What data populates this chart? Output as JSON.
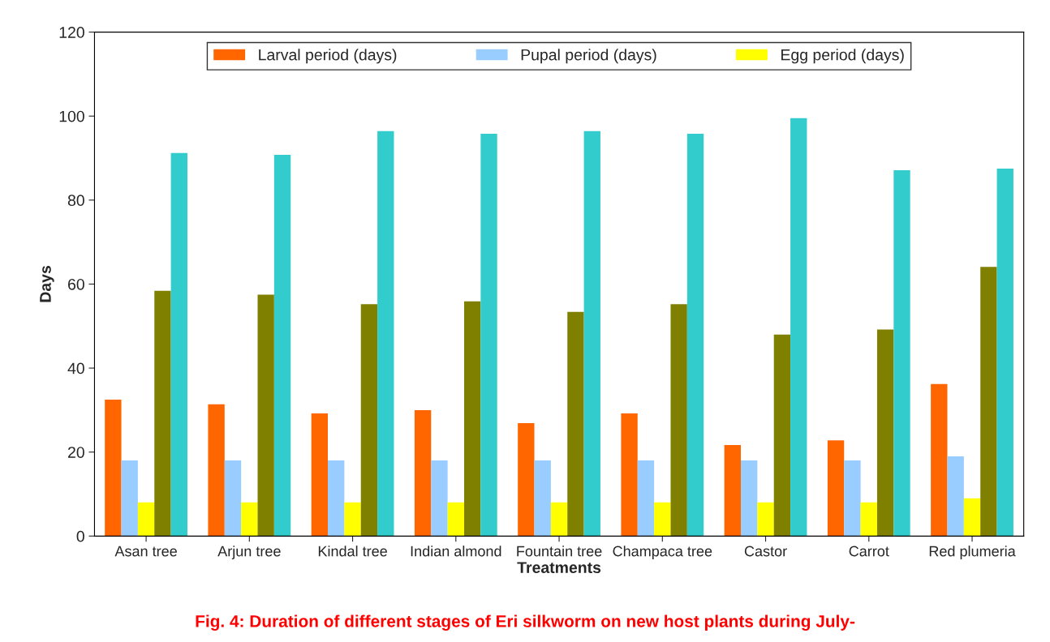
{
  "chart_data": {
    "type": "bar",
    "title": "Fig. 4: Duration of different stages of Eri silkworm on new host plants during July-",
    "xlabel": "Treatments",
    "ylabel": "Days",
    "categories": [
      "Asan tree",
      "Arjun tree",
      "Kindal tree",
      "Indian almond",
      "Fountain tree",
      "Champaca tree",
      "Castor",
      "Carrot",
      "Red plumeria"
    ],
    "series": [
      {
        "name": "Larval period (days)",
        "color": "#ff6600",
        "values": [
          32.5,
          31.4,
          29.2,
          30,
          26.9,
          29.2,
          21.7,
          22.8,
          36.2
        ]
      },
      {
        "name": "Pupal period (days)",
        "color": "#99ccff",
        "values": [
          18,
          18,
          18,
          18,
          18,
          18,
          18,
          18,
          19
        ]
      },
      {
        "name": "Egg period (days)",
        "color": "#ffff00",
        "values": [
          8,
          8,
          8,
          8,
          8,
          8,
          8,
          8,
          9
        ]
      },
      {
        "color": "#808000",
        "values": [
          58.4,
          57.5,
          55.2,
          55.9,
          53.4,
          55.2,
          48,
          49.2,
          64.1
        ]
      },
      {
        "color": "#33cccc",
        "values": [
          91.2,
          90.8,
          96.4,
          95.8,
          96.4,
          95.8,
          99.5,
          87.1,
          87.5
        ]
      }
    ],
    "ylim": [
      0,
      120
    ],
    "yticks": [
      0,
      20,
      40,
      60,
      80,
      100,
      120
    ],
    "grid": false,
    "legend": "top"
  }
}
